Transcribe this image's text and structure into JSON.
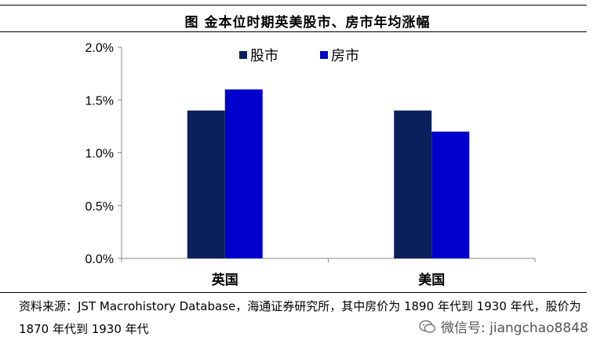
{
  "title": "图  金本位时期英美股市、房市年均涨幅",
  "chart_data": {
    "type": "bar",
    "categories": [
      "英国",
      "美国"
    ],
    "series": [
      {
        "name": "股市",
        "values": [
          1.4,
          1.4
        ],
        "color": "#0b1f5c"
      },
      {
        "name": "房市",
        "values": [
          1.6,
          1.2
        ],
        "color": "#0000cc"
      }
    ],
    "ylim": [
      0,
      2.0
    ],
    "yticks": [
      0,
      0.5,
      1.0,
      1.5,
      2.0
    ],
    "ytick_labels": [
      "0.0%",
      "0.5%",
      "1.0%",
      "1.5%",
      "2.0%"
    ],
    "grid": false,
    "legend": "top-center"
  },
  "source_note": "资料来源：JST Macrohistory Database，海通证券研究所，其中房价为 1890 年代到 1930 年代，股价为 1870 年代到 1930 年代",
  "watermark": "微信号: jiangchao8848",
  "watermark_icon": "wechat-icon"
}
